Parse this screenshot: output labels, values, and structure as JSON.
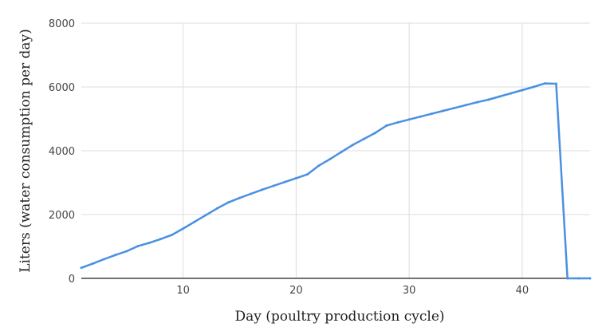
{
  "chart_data": {
    "type": "line",
    "title": "",
    "xlabel": "Day (poultry production cycle)",
    "ylabel": "Liters (water consumption per day)",
    "xlim": [
      1,
      46
    ],
    "ylim": [
      0,
      8000
    ],
    "x_ticks": [
      10,
      20,
      30,
      40
    ],
    "y_ticks": [
      0,
      2000,
      4000,
      6000,
      8000
    ],
    "grid": true,
    "legend": "none",
    "line_color": "#4a90e2",
    "series": [
      {
        "name": "",
        "x": [
          1,
          2,
          3,
          4,
          5,
          6,
          7,
          8,
          9,
          10,
          11,
          12,
          13,
          14,
          15,
          16,
          17,
          18,
          19,
          20,
          21,
          22,
          23,
          24,
          25,
          26,
          27,
          28,
          29,
          30,
          31,
          32,
          33,
          34,
          35,
          36,
          37,
          38,
          39,
          40,
          41,
          42,
          43,
          44,
          45,
          46
        ],
        "y": [
          330,
          460,
          600,
          730,
          850,
          1010,
          1110,
          1230,
          1360,
          1560,
          1770,
          1980,
          2190,
          2380,
          2520,
          2650,
          2780,
          2900,
          3020,
          3140,
          3260,
          3530,
          3740,
          3960,
          4180,
          4370,
          4560,
          4790,
          4890,
          4980,
          5070,
          5160,
          5250,
          5340,
          5430,
          5520,
          5600,
          5700,
          5800,
          5900,
          6000,
          6110,
          6100,
          0,
          0,
          0
        ]
      }
    ]
  }
}
